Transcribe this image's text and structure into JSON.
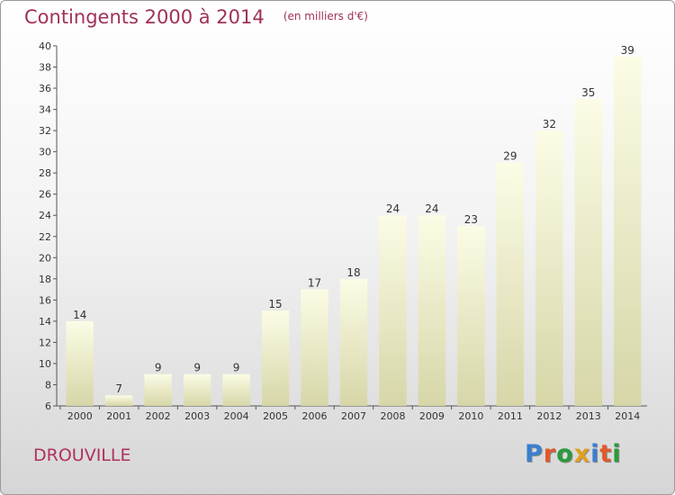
{
  "header": {
    "title": "Contingents 2000 à 2014",
    "subtitle": "(en milliers d'€)"
  },
  "footer": {
    "commune": "DROUVILLE",
    "brand": "Proxiti",
    "brand_colors": [
      "#3a7fd0",
      "#e05a2a",
      "#2a9a3a",
      "#e0a020",
      "#3a7fd0",
      "#e05a2a",
      "#2a9a3a"
    ]
  },
  "chart_data": {
    "type": "bar",
    "title": "Contingents 2000 à 2014",
    "subtitle": "(en milliers d'€)",
    "categories": [
      "2000",
      "2001",
      "2002",
      "2003",
      "2004",
      "2005",
      "2006",
      "2007",
      "2008",
      "2009",
      "2010",
      "2011",
      "2012",
      "2013",
      "2014"
    ],
    "values": [
      14,
      7,
      9,
      9,
      9,
      15,
      17,
      18,
      24,
      24,
      23,
      29,
      32,
      35,
      39
    ],
    "ylim": [
      6,
      40
    ],
    "yticks": [
      6,
      8,
      10,
      12,
      14,
      16,
      18,
      20,
      22,
      24,
      26,
      28,
      30,
      32,
      34,
      36,
      38,
      40
    ],
    "grid": false,
    "legend": "none",
    "bar_color_top": "#fcfce6",
    "bar_color_bottom": "#d6d6a8"
  }
}
